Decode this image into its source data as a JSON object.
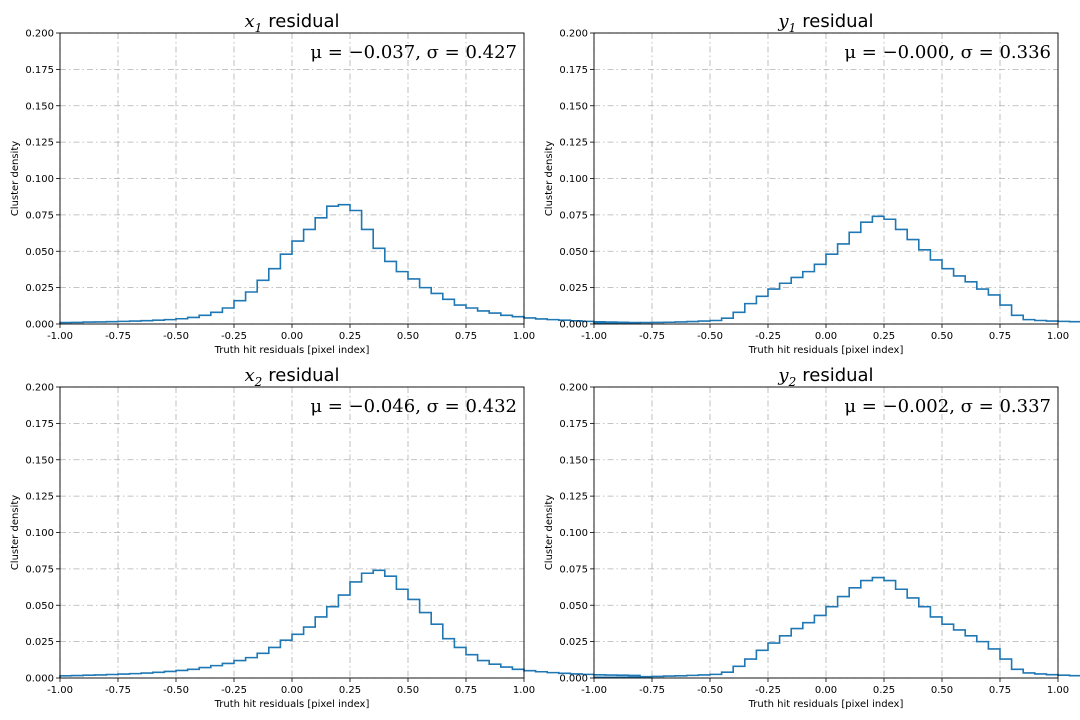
{
  "chart_data": [
    {
      "type": "histogram-step",
      "title_var": "x",
      "title_sub": "1",
      "title_rest": "residual",
      "annotation": "μ = −0.037, σ = 0.427",
      "xlabel": "Truth hit residuals [pixel index]",
      "ylabel": "Cluster density",
      "xlim": [
        -1.0,
        1.0
      ],
      "ylim": [
        0,
        0.2
      ],
      "xticks": [
        "-1.00",
        "-0.75",
        "-0.50",
        "-0.25",
        "0.00",
        "0.25",
        "0.50",
        "0.75",
        "1.00"
      ],
      "yticks": [
        "0.000",
        "0.025",
        "0.050",
        "0.075",
        "0.100",
        "0.125",
        "0.150",
        "0.175",
        "0.200"
      ],
      "grid": true,
      "color": "#1f77b4",
      "bin_edges_start": -1.0,
      "bin_width": 0.05,
      "values": [
        0.001,
        0.0011,
        0.0013,
        0.0014,
        0.0016,
        0.0018,
        0.002,
        0.0023,
        0.0026,
        0.003,
        0.0036,
        0.0045,
        0.006,
        0.008,
        0.011,
        0.016,
        0.022,
        0.03,
        0.038,
        0.048,
        0.057,
        0.065,
        0.073,
        0.081,
        0.082,
        0.078,
        0.065,
        0.052,
        0.043,
        0.036,
        0.031,
        0.025,
        0.021,
        0.017,
        0.013,
        0.011,
        0.009,
        0.0075,
        0.006,
        0.005,
        0.0042,
        0.0035,
        0.003,
        0.0026,
        0.0022,
        0.0018,
        0.0015,
        0.0013,
        0.0012,
        0.001
      ]
    },
    {
      "type": "histogram-step",
      "title_var": "y",
      "title_sub": "1",
      "title_rest": "residual",
      "annotation": "μ = −0.000, σ = 0.336",
      "xlabel": "Truth hit residuals [pixel index]",
      "ylabel": "Cluster density",
      "xlim": [
        -1.0,
        1.0
      ],
      "ylim": [
        0,
        0.2
      ],
      "xticks": [
        "-1.00",
        "-0.75",
        "-0.50",
        "-0.25",
        "0.00",
        "0.25",
        "0.50",
        "0.75",
        "1.00"
      ],
      "yticks": [
        "0.000",
        "0.025",
        "0.050",
        "0.075",
        "0.100",
        "0.125",
        "0.150",
        "0.175",
        "0.200"
      ],
      "grid": true,
      "color": "#1f77b4",
      "bin_edges_start": -1.0,
      "bin_width": 0.05,
      "values": [
        0.0005,
        0.0005,
        0.0007,
        0.0008,
        0.001,
        0.0011,
        0.0012,
        0.0014,
        0.0017,
        0.002,
        0.0024,
        0.004,
        0.008,
        0.014,
        0.019,
        0.024,
        0.028,
        0.032,
        0.036,
        0.041,
        0.048,
        0.055,
        0.063,
        0.07,
        0.074,
        0.072,
        0.065,
        0.058,
        0.051,
        0.044,
        0.038,
        0.033,
        0.029,
        0.024,
        0.02,
        0.013,
        0.006,
        0.003,
        0.0024,
        0.002,
        0.0018,
        0.0016,
        0.0014,
        0.0013,
        0.0012,
        0.001,
        0.0008,
        0.0007,
        0.0006,
        0.0005
      ]
    },
    {
      "type": "histogram-step",
      "title_var": "x",
      "title_sub": "2",
      "title_rest": "residual",
      "annotation": "μ = −0.046, σ = 0.432",
      "xlabel": "Truth hit residuals [pixel index]",
      "ylabel": "Cluster density",
      "xlim": [
        -1.0,
        1.0
      ],
      "ylim": [
        0,
        0.2
      ],
      "xticks": [
        "-1.00",
        "-0.75",
        "-0.50",
        "-0.25",
        "0.00",
        "0.25",
        "0.50",
        "0.75",
        "1.00"
      ],
      "yticks": [
        "0.000",
        "0.025",
        "0.050",
        "0.075",
        "0.100",
        "0.125",
        "0.150",
        "0.175",
        "0.200"
      ],
      "grid": true,
      "color": "#1f77b4",
      "bin_edges_start": -1.0,
      "bin_width": 0.05,
      "values": [
        0.0015,
        0.0017,
        0.0019,
        0.0021,
        0.0024,
        0.0027,
        0.003,
        0.0034,
        0.0039,
        0.0045,
        0.0052,
        0.006,
        0.0072,
        0.0085,
        0.01,
        0.012,
        0.014,
        0.017,
        0.021,
        0.026,
        0.03,
        0.035,
        0.042,
        0.049,
        0.057,
        0.066,
        0.072,
        0.074,
        0.07,
        0.061,
        0.054,
        0.045,
        0.037,
        0.027,
        0.021,
        0.016,
        0.012,
        0.0095,
        0.0075,
        0.006,
        0.005,
        0.0043,
        0.0037,
        0.0032,
        0.0028,
        0.0025,
        0.0022,
        0.002,
        0.0019,
        0.0018
      ]
    },
    {
      "type": "histogram-step",
      "title_var": "y",
      "title_sub": "2",
      "title_rest": "residual",
      "annotation": "μ = −0.002, σ = 0.337",
      "xlabel": "Truth hit residuals [pixel index]",
      "ylabel": "Cluster density",
      "xlim": [
        -1.0,
        1.0
      ],
      "ylim": [
        0,
        0.2
      ],
      "xticks": [
        "-1.00",
        "-0.75",
        "-0.50",
        "-0.25",
        "0.00",
        "0.25",
        "0.50",
        "0.75",
        "1.00"
      ],
      "yticks": [
        "0.000",
        "0.025",
        "0.050",
        "0.075",
        "0.100",
        "0.125",
        "0.150",
        "0.175",
        "0.200"
      ],
      "grid": true,
      "color": "#1f77b4",
      "bin_edges_start": -1.0,
      "bin_width": 0.05,
      "values": [
        0.0005,
        0.0005,
        0.0006,
        0.0007,
        0.0009,
        0.0011,
        0.0013,
        0.0015,
        0.0018,
        0.0021,
        0.0025,
        0.004,
        0.008,
        0.013,
        0.019,
        0.024,
        0.029,
        0.034,
        0.038,
        0.043,
        0.049,
        0.056,
        0.062,
        0.067,
        0.069,
        0.067,
        0.061,
        0.055,
        0.049,
        0.042,
        0.037,
        0.033,
        0.029,
        0.025,
        0.02,
        0.013,
        0.006,
        0.0035,
        0.0028,
        0.0023,
        0.0019,
        0.0016,
        0.0014,
        0.0012,
        0.0011,
        0.0009,
        0.0008,
        0.0007,
        0.0006,
        0.0005
      ]
    }
  ]
}
